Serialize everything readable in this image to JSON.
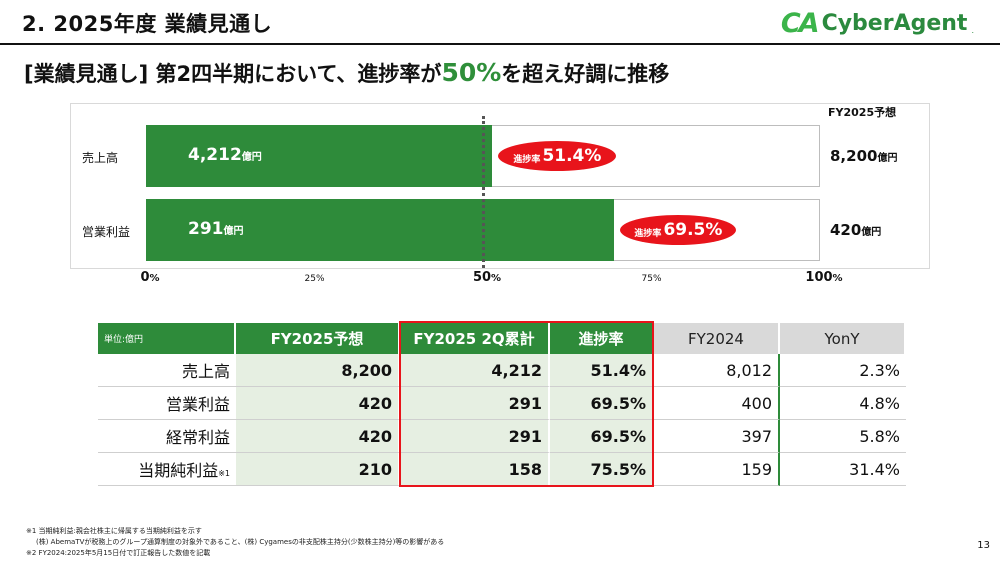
{
  "header": {
    "title": "2. 2025年度 業績見通し",
    "logo_mark": "CA",
    "logo_text": "CyberAgent",
    "logo_suffix": "."
  },
  "subtitle": {
    "prefix": "[業績見通し] 第2四半期において、進捗率が",
    "highlight": "50%",
    "suffix": "を超え好調に推移"
  },
  "chart_data": {
    "type": "bar",
    "orientation": "horizontal",
    "target_header": "FY2025予想",
    "unit": "億円",
    "progress_label": "進捗率",
    "reference_line": 50,
    "categories": [
      "売上高",
      "営業利益"
    ],
    "actual": [
      4212,
      291
    ],
    "actual_labels": [
      "4,212",
      "291"
    ],
    "progress": [
      51.4,
      69.5
    ],
    "progress_labels": [
      "51.4%",
      "69.5%"
    ],
    "targets": [
      8200,
      420
    ],
    "target_labels": [
      "8,200",
      "420"
    ],
    "xlim": [
      0,
      100
    ],
    "major_ticks": [
      {
        "value": 0,
        "label": "0"
      },
      {
        "value": 50,
        "label": "50"
      },
      {
        "value": 100,
        "label": "100"
      }
    ],
    "minor_ticks": [
      {
        "value": 25,
        "label": "25%"
      },
      {
        "value": 75,
        "label": "75%"
      }
    ],
    "pct_suffix": "%"
  },
  "table": {
    "unit_label": "単位:億円",
    "headers": [
      "FY2025予想",
      "FY2025 2Q累計",
      "進捗率",
      "FY2024",
      "YonY"
    ],
    "rows": [
      {
        "label": "売上高",
        "note": "",
        "cells": [
          "8,200",
          "4,212",
          "51.4%",
          "8,012",
          "2.3%"
        ]
      },
      {
        "label": "営業利益",
        "note": "",
        "cells": [
          "420",
          "291",
          "69.5%",
          "400",
          "4.8%"
        ]
      },
      {
        "label": "経常利益",
        "note": "",
        "cells": [
          "420",
          "291",
          "69.5%",
          "397",
          "5.8%"
        ]
      },
      {
        "label": "当期純利益",
        "note": "※1",
        "cells": [
          "210",
          "158",
          "75.5%",
          "159",
          "31.4%"
        ]
      }
    ]
  },
  "footnotes": [
    "※1 当期純利益:親会社株主に帰属する当期純利益を示す",
    "(株) AbemaTVが税務上のグループ通算制度の対象外であること、(株) Cygamesの非支配株主持分(少数株主持分)等の影響がある",
    "※2 FY2024:2025年5月15日付で訂正報告した数値を記載"
  ],
  "page_number": "13",
  "colors": {
    "green": "#2e8b3a",
    "red": "#e8141b",
    "shade": "#e6efe2",
    "grey": "#d9d9d9"
  }
}
